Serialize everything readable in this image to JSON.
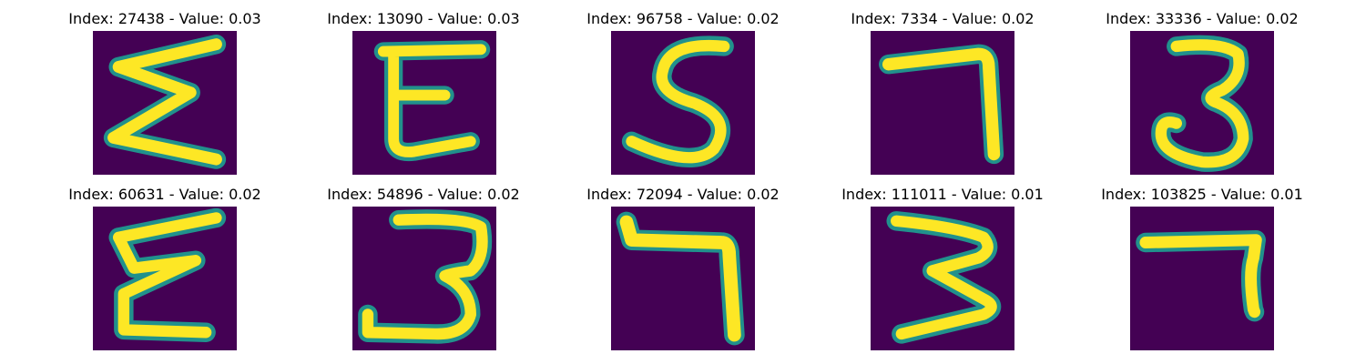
{
  "colors": {
    "background": "#440154",
    "edge": "#21918c",
    "mid": "#5ec962",
    "stroke": "#fde725"
  },
  "panels": [
    {
      "title": "Index: 27438 - Value: 0.03",
      "glyph": "sigma-like"
    },
    {
      "title": "Index: 13090 - Value: 0.03",
      "glyph": "E-like"
    },
    {
      "title": "Index: 96758 - Value: 0.02",
      "glyph": "S-like"
    },
    {
      "title": "Index: 7334 - Value: 0.02",
      "glyph": "7-like"
    },
    {
      "title": "Index: 33336 - Value: 0.02",
      "glyph": "3-like"
    },
    {
      "title": "Index: 60631 - Value: 0.02",
      "glyph": "sigma-like"
    },
    {
      "title": "Index: 54896 - Value: 0.02",
      "glyph": "3-like"
    },
    {
      "title": "Index: 72094 - Value: 0.02",
      "glyph": "7-like"
    },
    {
      "title": "Index: 111011 - Value: 0.01",
      "glyph": "3-like"
    },
    {
      "title": "Index: 103825 - Value: 0.01",
      "glyph": "7-like"
    }
  ]
}
